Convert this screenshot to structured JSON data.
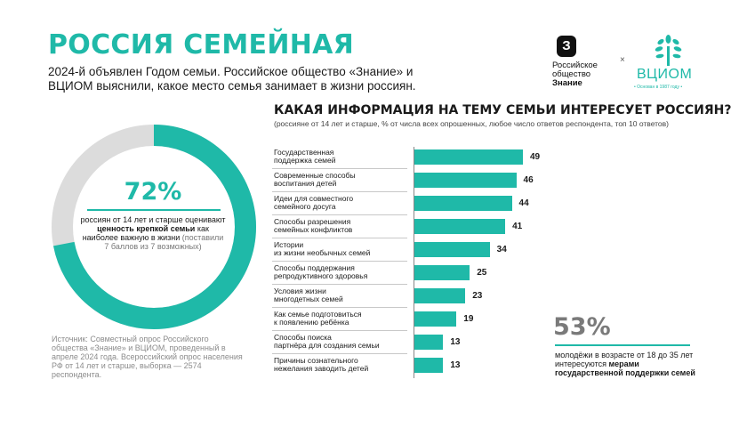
{
  "header": {
    "title": "РОССИЯ СЕМЕЙНАЯ",
    "subtitle": "2024-й объявлен Годом семьи. Российское общество «Знание» и ВЦИОМ выяснили, какое место семья занимает в жизни россиян."
  },
  "logos": {
    "znanie_badge": "З",
    "znanie_line1": "Российское",
    "znanie_line2": "общество",
    "znanie_line3": "Знание",
    "times": "×",
    "vciom_name": "ВЦИОМ",
    "vciom_tag": "• Основан в 1987 году •"
  },
  "stat72": {
    "value": "72%",
    "fraction": 0.72,
    "text_a": "россиян от 14 лет и старше оценивают ",
    "text_b": "ценность крепкой семьи",
    "text_c": " как наиболее важную в жизни ",
    "text_d": "(поставили 7 баллов из 7 возможных)"
  },
  "source": "Источник: Совместный опрос Российского общества «Знание» и ВЦИОМ, проведенный в апреле 2024 года. Всероссийский опрос населения РФ от 14 лет и старше, выборка — 2574 респондента.",
  "chart_data": {
    "type": "bar",
    "orientation": "horizontal",
    "title": "КАКАЯ ИНФОРМАЦИЯ НА ТЕМУ СЕМЬИ ИНТЕРЕСУЕТ РОССИЯН?",
    "subtitle": "(россияне от 14 лет и старше, % от числа всех опрошенных, любое число ответов респондента, топ 10 ответов)",
    "categories": [
      [
        "Государственная",
        "поддержка семей"
      ],
      [
        "Современные способы",
        "воспитания детей"
      ],
      [
        "Идеи для совместного",
        "семейного досуга"
      ],
      [
        "Способы разрешения",
        "семейных конфликтов"
      ],
      [
        "Истории",
        "из жизни необычных семей"
      ],
      [
        "Способы поддержания",
        "репродуктивного здоровья"
      ],
      [
        "Условия жизни",
        "многодетных семей"
      ],
      [
        "Как семье подготовиться",
        "к появлению ребёнка"
      ],
      [
        "Способы поиска",
        "партнёра для создания семьи"
      ],
      [
        "Причины сознательного",
        "нежелания заводить детей"
      ]
    ],
    "values": [
      49,
      46,
      44,
      41,
      34,
      25,
      23,
      19,
      13,
      13
    ],
    "max": 49,
    "bar_color": "#1fb9a8"
  },
  "stat53": {
    "value": "53%",
    "text_a": "молодёжи в возрасте от 18 до 35 лет интересуются ",
    "text_b": "мерами государственной поддержки семей"
  },
  "colors": {
    "accent": "#1fb9a8",
    "ring_bg": "#dcdcdc"
  }
}
